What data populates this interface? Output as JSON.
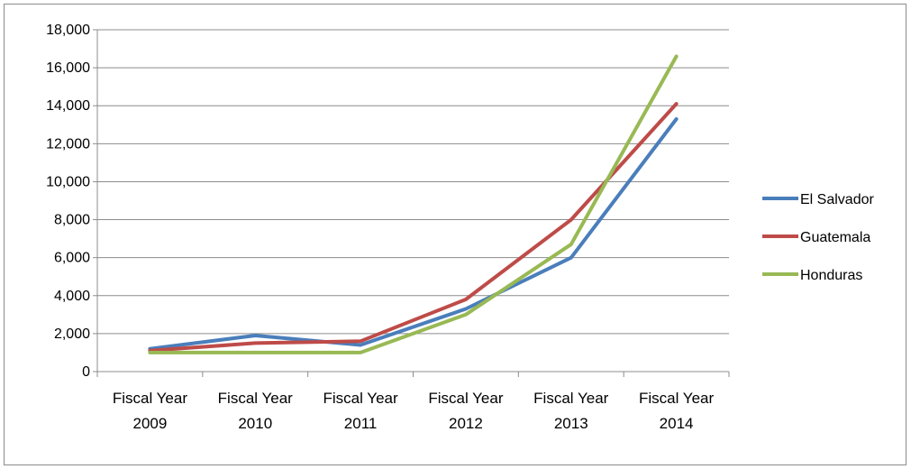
{
  "chart_data": {
    "type": "line",
    "title": "",
    "xlabel": "",
    "ylabel": "",
    "categories": [
      [
        "Fiscal Year",
        "2009"
      ],
      [
        "Fiscal Year",
        "2010"
      ],
      [
        "Fiscal Year",
        "2011"
      ],
      [
        "Fiscal Year",
        "2012"
      ],
      [
        "Fiscal Year",
        "2013"
      ],
      [
        "Fiscal Year",
        "2014"
      ]
    ],
    "ylim": [
      0,
      18000
    ],
    "yticks": [
      {
        "value": 0,
        "label": "0"
      },
      {
        "value": 2000,
        "label": "2,000"
      },
      {
        "value": 4000,
        "label": "4,000"
      },
      {
        "value": 6000,
        "label": "6,000"
      },
      {
        "value": 8000,
        "label": "8,000"
      },
      {
        "value": 10000,
        "label": "10,000"
      },
      {
        "value": 12000,
        "label": "12,000"
      },
      {
        "value": 14000,
        "label": "14,000"
      },
      {
        "value": 16000,
        "label": "16,000"
      },
      {
        "value": 18000,
        "label": "18,000"
      }
    ],
    "grid": true,
    "legend_position": "right",
    "series": [
      {
        "name": "El Salvador",
        "color": "#4a7ebb",
        "values": [
          1200,
          1900,
          1400,
          3300,
          6000,
          13300
        ]
      },
      {
        "name": "Guatemala",
        "color": "#be4b48",
        "values": [
          1100,
          1500,
          1600,
          3800,
          8000,
          14100
        ]
      },
      {
        "name": "Honduras",
        "color": "#98b954",
        "values": [
          1000,
          1000,
          1000,
          3000,
          6700,
          16600
        ]
      }
    ]
  }
}
